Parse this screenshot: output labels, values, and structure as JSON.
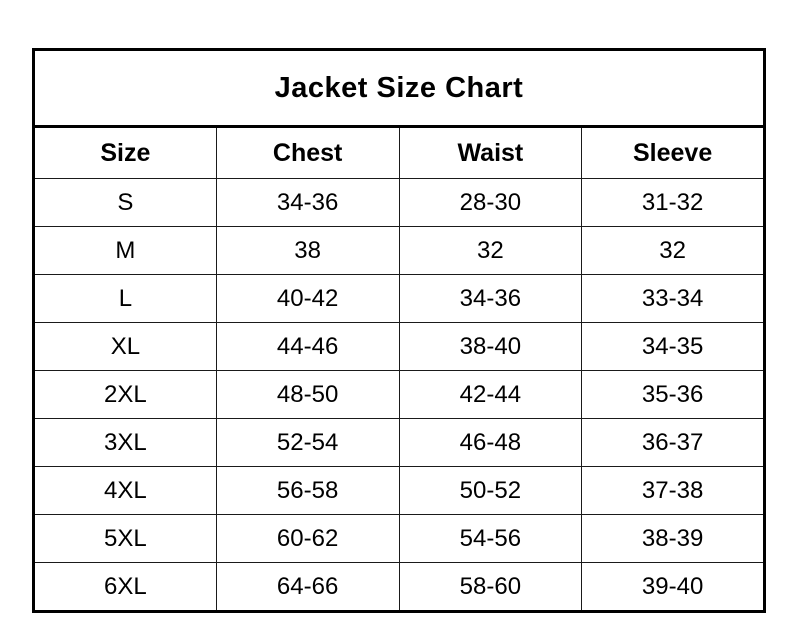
{
  "chart_data": {
    "type": "table",
    "title": "Jacket Size Chart",
    "columns": [
      "Size",
      "Chest",
      "Waist",
      "Sleeve"
    ],
    "rows": [
      [
        "S",
        "34-36",
        "28-30",
        "31-32"
      ],
      [
        "M",
        "38",
        "32",
        "32"
      ],
      [
        "L",
        "40-42",
        "34-36",
        "33-34"
      ],
      [
        "XL",
        "44-46",
        "38-40",
        "34-35"
      ],
      [
        "2XL",
        "48-50",
        "42-44",
        "35-36"
      ],
      [
        "3XL",
        "52-54",
        "46-48",
        "36-37"
      ],
      [
        "4XL",
        "56-58",
        "50-52",
        "37-38"
      ],
      [
        "5XL",
        "60-62",
        "54-56",
        "38-39"
      ],
      [
        "6XL",
        "64-66",
        "58-60",
        "39-40"
      ]
    ],
    "layout": {
      "grid": "on",
      "border_color": "#000000",
      "background_color": "#ffffff",
      "text_color": "#000000"
    }
  }
}
